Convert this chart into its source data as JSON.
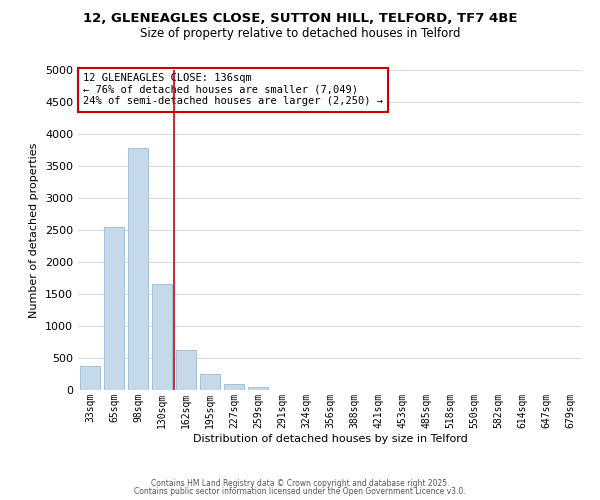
{
  "title": "12, GLENEAGLES CLOSE, SUTTON HILL, TELFORD, TF7 4BE",
  "subtitle": "Size of property relative to detached houses in Telford",
  "xlabel": "Distribution of detached houses by size in Telford",
  "ylabel": "Number of detached properties",
  "bar_labels": [
    "33sqm",
    "65sqm",
    "98sqm",
    "130sqm",
    "162sqm",
    "195sqm",
    "227sqm",
    "259sqm",
    "291sqm",
    "324sqm",
    "356sqm",
    "388sqm",
    "421sqm",
    "453sqm",
    "485sqm",
    "518sqm",
    "550sqm",
    "582sqm",
    "614sqm",
    "647sqm",
    "679sqm"
  ],
  "bar_values": [
    380,
    2550,
    3780,
    1650,
    620,
    250,
    100,
    50,
    0,
    0,
    0,
    0,
    0,
    0,
    0,
    0,
    0,
    0,
    0,
    0,
    0
  ],
  "bar_color": "#c6d9e8",
  "bar_edgecolor": "#9bbbd4",
  "ylim": [
    0,
    5000
  ],
  "yticks": [
    0,
    500,
    1000,
    1500,
    2000,
    2500,
    3000,
    3500,
    4000,
    4500,
    5000
  ],
  "vline_x": 3.5,
  "vline_color": "#cc0000",
  "annotation_title": "12 GLENEAGLES CLOSE: 136sqm",
  "annotation_line1": "← 76% of detached houses are smaller (7,049)",
  "annotation_line2": "24% of semi-detached houses are larger (2,250) →",
  "annotation_box_edgecolor": "#cc0000",
  "footer1": "Contains HM Land Registry data © Crown copyright and database right 2025.",
  "footer2": "Contains public sector information licensed under the Open Government Licence v3.0.",
  "background_color": "#ffffff",
  "grid_color": "#d0dce8"
}
